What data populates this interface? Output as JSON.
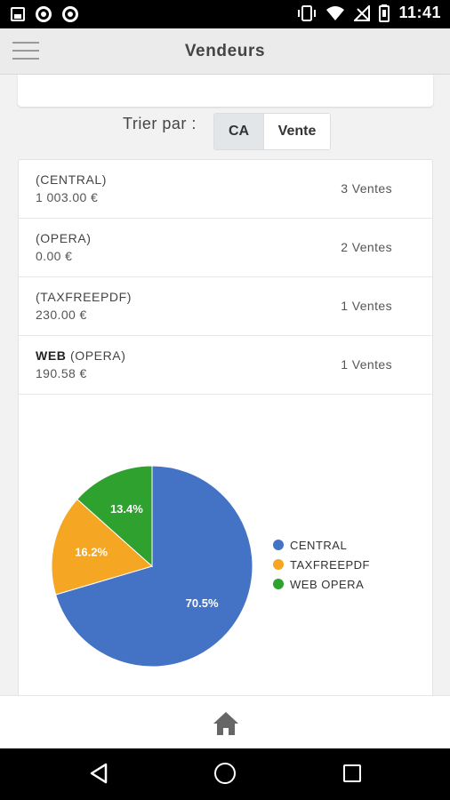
{
  "status_bar": {
    "time": "11:41"
  },
  "app_bar": {
    "title": "Vendeurs"
  },
  "sort": {
    "label": "Trier par :",
    "options": [
      "CA",
      "Vente"
    ],
    "selected": "CA"
  },
  "sellers": [
    {
      "bold": "",
      "name": "(CENTRAL)",
      "amount": "1 003.00 €",
      "sales": "3 Ventes"
    },
    {
      "bold": "",
      "name": "(OPERA)",
      "amount": "0.00 €",
      "sales": "2 Ventes"
    },
    {
      "bold": "",
      "name": "(TAXFREEPDF)",
      "amount": "230.00 €",
      "sales": "1 Ventes"
    },
    {
      "bold": "WEB",
      "name": "(OPERA)",
      "amount": "190.58 €",
      "sales": "1 Ventes"
    }
  ],
  "chart_data": {
    "type": "pie",
    "title": "",
    "legend_position": "right",
    "slices": [
      {
        "label": "CENTRAL",
        "value": 70.5,
        "display": "70.5%",
        "color": "#4472c4"
      },
      {
        "label": "TAXFREEPDF",
        "value": 16.2,
        "display": "16.2%",
        "color": "#f5a623"
      },
      {
        "label": "WEB OPERA",
        "value": 13.4,
        "display": "13.4%",
        "color": "#2ea12e"
      }
    ]
  },
  "icons": {
    "menu": "menu-icon",
    "home": "home-icon",
    "back": "nav-back-icon",
    "nav_home": "nav-home-icon",
    "recents": "nav-recents-icon"
  }
}
